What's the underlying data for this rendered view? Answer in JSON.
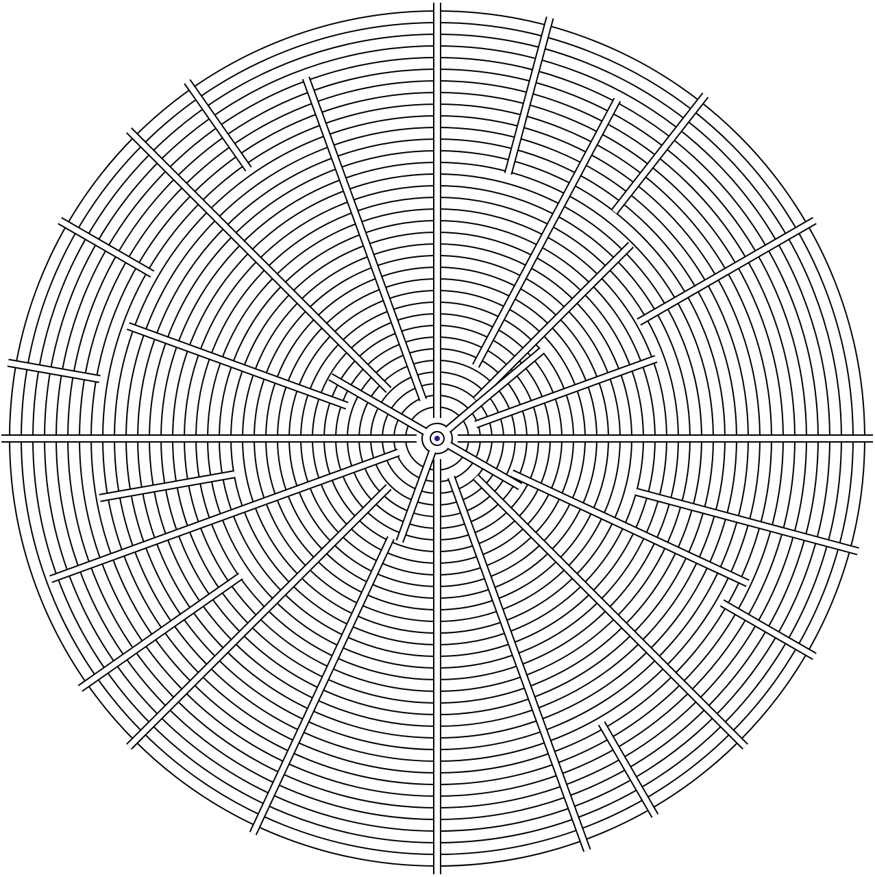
{
  "maze": {
    "type": "circular",
    "wall_color": "#000000",
    "background_color": "#ffffff",
    "marker_color": "#1c1c9c",
    "has_center_marker": true
  }
}
